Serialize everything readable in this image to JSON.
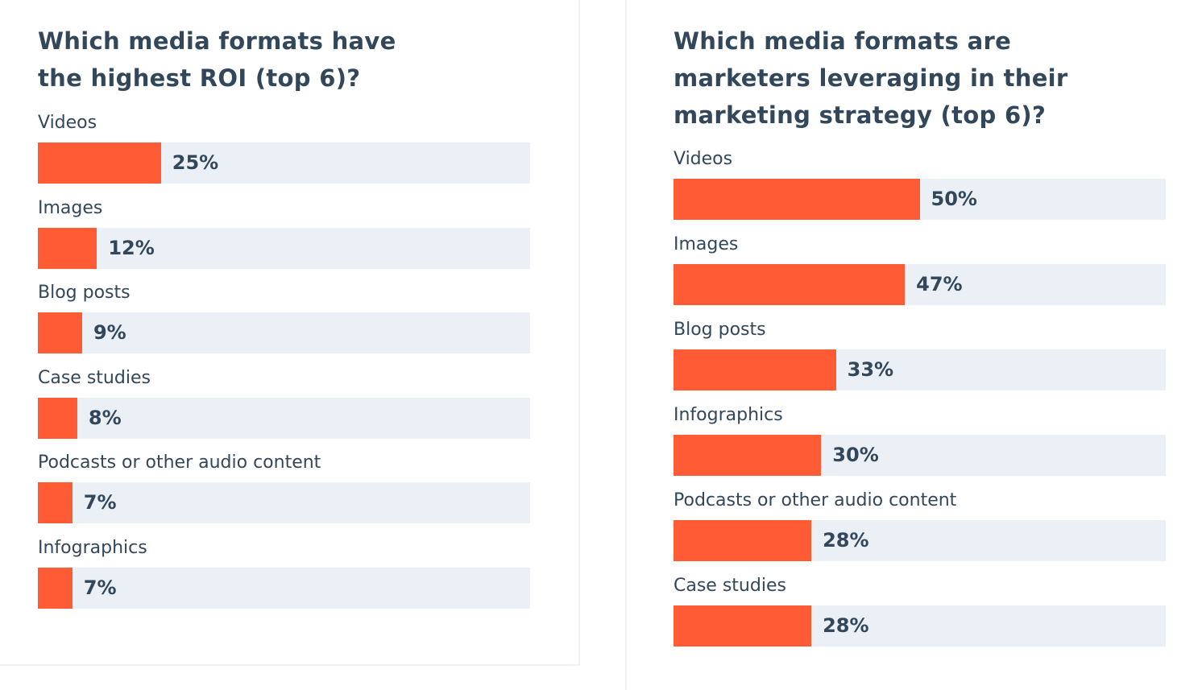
{
  "chart_data": [
    {
      "type": "bar",
      "orientation": "horizontal",
      "title": "Which media formats have the highest ROI (top 6)?",
      "categories": [
        "Videos",
        "Images",
        "Blog posts",
        "Case studies",
        "Podcasts or other audio content",
        "Infographics"
      ],
      "values": [
        25,
        12,
        9,
        8,
        7,
        7
      ],
      "value_labels": [
        "25%",
        "12%",
        "9%",
        "8%",
        "7%",
        "7%"
      ],
      "color": "#ff5c35",
      "xlim": [
        0,
        100
      ]
    },
    {
      "type": "bar",
      "orientation": "horizontal",
      "title": "Which media formats are marketers leveraging in their marketing strategy (top 6)?",
      "categories": [
        "Videos",
        "Images",
        "Blog posts",
        "Infographics",
        "Podcasts or other audio content",
        "Case studies"
      ],
      "values": [
        50,
        47,
        33,
        30,
        28,
        28
      ],
      "value_labels": [
        "50%",
        "47%",
        "33%",
        "30%",
        "28%",
        "28%"
      ],
      "color": "#ff5c35",
      "xlim": [
        0,
        100
      ]
    }
  ]
}
